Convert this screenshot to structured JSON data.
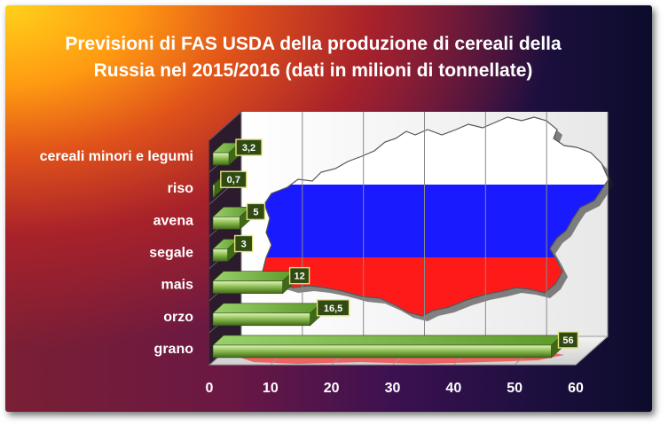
{
  "chart_data": {
    "type": "bar",
    "orientation": "horizontal",
    "title": "Previsioni di FAS USDA della produzione di cereali della Russia nel 2015/2016 (dati in milioni di tonnellate)",
    "title_lines": [
      "Previsioni di FAS USDA della produzione di cereali della",
      "Russia nel 2015/2016 (dati in milioni di tonnellate)"
    ],
    "categories": [
      "cereali minori e legumi",
      "riso",
      "avena",
      "segale",
      "mais",
      "orzo",
      "grano"
    ],
    "values": [
      3.2,
      0.7,
      5,
      3,
      12,
      16.5,
      56
    ],
    "value_labels": [
      "3,2",
      "0,7",
      "5",
      "3",
      "12",
      "16,5",
      "56"
    ],
    "xlim": [
      0,
      60
    ],
    "x_ticks": [
      "0",
      "10",
      "20",
      "30",
      "40",
      "50",
      "60"
    ],
    "xlabel": "",
    "ylabel": "",
    "grid": true,
    "legend": "none",
    "background_image": "russian-flag-map",
    "colors": {
      "bar": "#5c8a2a",
      "bar_light": "#c8e6a0",
      "label_box": "#2f4a12",
      "label_border": "#e6e27a",
      "flag_white": "#ffffff",
      "flag_blue": "#1a1aff",
      "flag_red": "#ff1a1a"
    }
  }
}
